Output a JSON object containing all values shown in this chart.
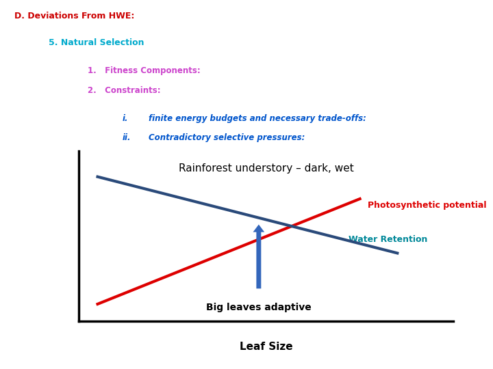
{
  "background_color": "#ffffff",
  "title_text": "D. Deviations From HWE:",
  "title_color": "#cc0000",
  "title_fontsize": 9,
  "subtitle_text": "5. Natural Selection",
  "subtitle_color": "#00aacc",
  "subtitle_fontsize": 9,
  "item1_text": "1.   Fitness Components:",
  "item2_text": "2.   Constraints:",
  "items_color": "#cc44cc",
  "items_fontsize": 8.5,
  "sub1_label": "i.",
  "sub1_text": "finite energy budgets and necessary trade-offs:",
  "sub2_label": "ii.",
  "sub2_text": "Contradictory selective pressures:",
  "sub_color": "#0055cc",
  "sub_fontsize": 8.5,
  "chart_title": "Rainforest understory – dark, wet",
  "chart_title_fontsize": 11,
  "line1_label": "Photosynthetic potential",
  "line1_color": "#dd0000",
  "line2_label": "Water Retention",
  "line2_color": "#2a4a7a",
  "arrow_color": "#3366bb",
  "arrow_label": "Big leaves adaptive",
  "xlabel": "Leaf Size",
  "xlabel_fontsize": 11
}
